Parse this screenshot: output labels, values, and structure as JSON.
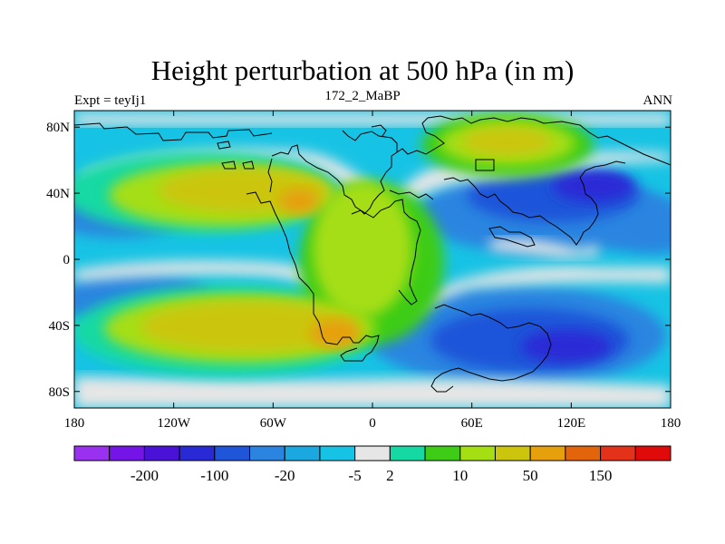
{
  "title": "Height perturbation at 500 hPa (in m)",
  "left_string": "Expt = teyIj1",
  "center_string": "172_2_MaBP",
  "right_string": "ANN",
  "x_axis": {
    "ticks": [
      {
        "value": -180,
        "label": "180"
      },
      {
        "value": -120,
        "label": "120W"
      },
      {
        "value": -60,
        "label": "60W"
      },
      {
        "value": 0,
        "label": "0"
      },
      {
        "value": 60,
        "label": "60E"
      },
      {
        "value": 120,
        "label": "120E"
      },
      {
        "value": 180,
        "label": "180"
      }
    ]
  },
  "y_axis": {
    "ticks": [
      {
        "value": 80,
        "label": "80N"
      },
      {
        "value": 40,
        "label": "40N"
      },
      {
        "value": 0,
        "label": "0"
      },
      {
        "value": -40,
        "label": "40S"
      },
      {
        "value": -80,
        "label": "80S"
      }
    ]
  },
  "colorbar": {
    "colors": [
      "#9b31f0",
      "#7414e6",
      "#4a12d6",
      "#2a29d6",
      "#1f55d9",
      "#2b85e0",
      "#1ba7e0",
      "#17c3e4",
      "#e6e6e6",
      "#14d9a3",
      "#3ecc16",
      "#a5de12",
      "#cbc60d",
      "#e6a00b",
      "#e2640b",
      "#e4321a",
      "#e10a0a"
    ],
    "labels": [
      {
        "after_index": 1,
        "text": "-200"
      },
      {
        "after_index": 3,
        "text": "-100"
      },
      {
        "after_index": 5,
        "text": "-20"
      },
      {
        "after_index": 7,
        "text": "-5"
      },
      {
        "after_index": 8,
        "text": "2"
      },
      {
        "after_index": 10,
        "text": "10"
      },
      {
        "after_index": 12,
        "text": "50"
      },
      {
        "after_index": 14,
        "text": "150"
      }
    ]
  }
}
